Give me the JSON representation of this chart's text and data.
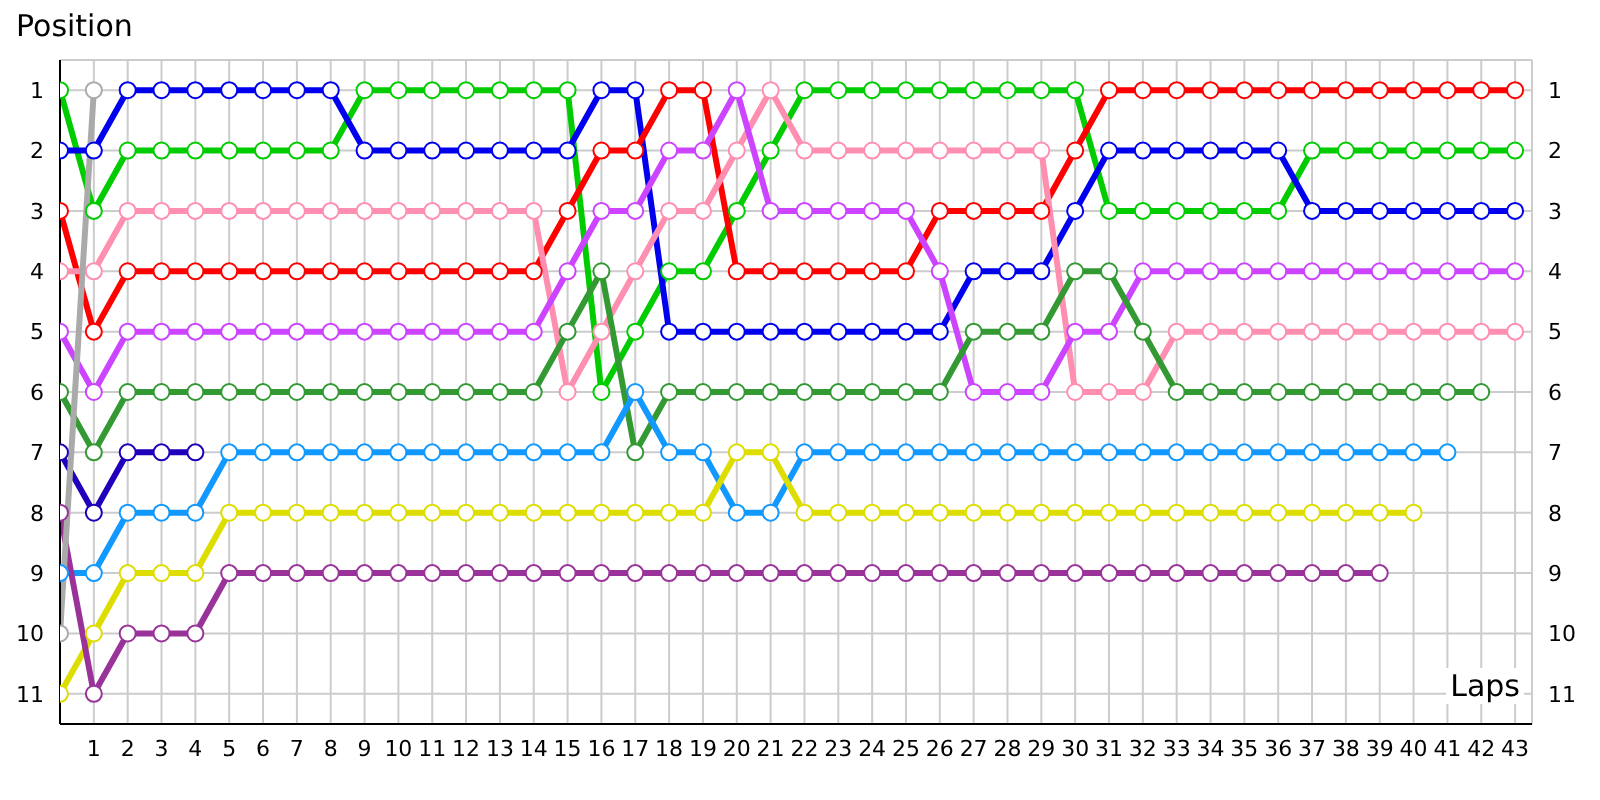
{
  "chart_data": {
    "type": "line",
    "ylabel": "Position",
    "xlabel": "Laps",
    "x": [
      0,
      1,
      2,
      3,
      4,
      5,
      6,
      7,
      8,
      9,
      10,
      11,
      12,
      13,
      14,
      15,
      16,
      17,
      18,
      19,
      20,
      21,
      22,
      23,
      24,
      25,
      26,
      27,
      28,
      29,
      30,
      31,
      32,
      33,
      34,
      35,
      36,
      37,
      38,
      39,
      40,
      41,
      42,
      43
    ],
    "xlim": [
      0,
      43.5
    ],
    "xticks": [
      1,
      2,
      3,
      4,
      5,
      6,
      7,
      8,
      9,
      10,
      11,
      12,
      13,
      14,
      15,
      16,
      17,
      18,
      19,
      20,
      21,
      22,
      23,
      24,
      25,
      26,
      27,
      28,
      29,
      30,
      31,
      32,
      33,
      34,
      35,
      36,
      37,
      38,
      39,
      40,
      41,
      42,
      43
    ],
    "ylim": [
      11.5,
      0.5
    ],
    "yticks": [
      1,
      2,
      3,
      4,
      5,
      6,
      7,
      8,
      9,
      10,
      11
    ],
    "y2lim": [
      11.5,
      0.5
    ],
    "y2ticks": [
      1,
      2,
      3,
      4,
      5,
      6,
      7,
      8,
      9,
      10,
      11
    ],
    "grid": true,
    "marker": "circle",
    "line_style": "solid",
    "series": [
      {
        "color": "#00cc00",
        "values": [
          1,
          3,
          2,
          2,
          2,
          2,
          2,
          2,
          2,
          1,
          1,
          1,
          1,
          1,
          1,
          1,
          6,
          5,
          4,
          4,
          3,
          2,
          1,
          1,
          1,
          1,
          1,
          1,
          1,
          1,
          1,
          3,
          3,
          3,
          3,
          3,
          3,
          2,
          2,
          2,
          2,
          2,
          2,
          2
        ]
      },
      {
        "color": "#0000ee",
        "values": [
          2,
          2,
          1,
          1,
          1,
          1,
          1,
          1,
          1,
          2,
          2,
          2,
          2,
          2,
          2,
          2,
          1,
          1,
          5,
          5,
          5,
          5,
          5,
          5,
          5,
          5,
          5,
          4,
          4,
          4,
          3,
          2,
          2,
          2,
          2,
          2,
          2,
          3,
          3,
          3,
          3,
          3,
          3,
          3
        ]
      },
      {
        "color": "#ff0000",
        "values": [
          3,
          5,
          4,
          4,
          4,
          4,
          4,
          4,
          4,
          4,
          4,
          4,
          4,
          4,
          4,
          3,
          2,
          2,
          1,
          1,
          4,
          4,
          4,
          4,
          4,
          4,
          3,
          3,
          3,
          3,
          2,
          1,
          1,
          1,
          1,
          1,
          1,
          1,
          1,
          1,
          1,
          1,
          1,
          1
        ]
      },
      {
        "color": "#ff8fb0",
        "values": [
          4,
          4,
          3,
          3,
          3,
          3,
          3,
          3,
          3,
          3,
          3,
          3,
          3,
          3,
          3,
          6,
          5,
          4,
          3,
          3,
          2,
          1,
          2,
          2,
          2,
          2,
          2,
          2,
          2,
          2,
          6,
          6,
          6,
          5,
          5,
          5,
          5,
          5,
          5,
          5,
          5,
          5,
          5,
          5
        ]
      },
      {
        "color": "#cc44ff",
        "values": [
          5,
          6,
          5,
          5,
          5,
          5,
          5,
          5,
          5,
          5,
          5,
          5,
          5,
          5,
          5,
          4,
          3,
          3,
          2,
          2,
          1,
          3,
          3,
          3,
          3,
          3,
          4,
          6,
          6,
          6,
          5,
          5,
          4,
          4,
          4,
          4,
          4,
          4,
          4,
          4,
          4,
          4,
          4,
          4
        ]
      },
      {
        "color": "#339933",
        "values": [
          6,
          7,
          6,
          6,
          6,
          6,
          6,
          6,
          6,
          6,
          6,
          6,
          6,
          6,
          6,
          5,
          4,
          7,
          6,
          6,
          6,
          6,
          6,
          6,
          6,
          6,
          6,
          5,
          5,
          5,
          4,
          4,
          5,
          6,
          6,
          6,
          6,
          6,
          6,
          6,
          6,
          6,
          6,
          null
        ]
      },
      {
        "color": "#2200bb",
        "values": [
          7,
          8,
          7,
          7,
          7,
          null,
          null,
          null,
          null,
          null,
          null,
          null,
          null,
          null,
          null,
          null,
          null,
          null,
          null,
          null,
          null,
          null,
          null,
          null,
          null,
          null,
          null,
          null,
          null,
          null,
          null,
          null,
          null,
          null,
          null,
          null,
          null,
          null,
          null,
          null,
          null,
          null,
          null,
          null
        ]
      },
      {
        "color": "#1199ff",
        "values": [
          9,
          9,
          8,
          8,
          8,
          7,
          7,
          7,
          7,
          7,
          7,
          7,
          7,
          7,
          7,
          7,
          7,
          6,
          7,
          7,
          8,
          8,
          7,
          7,
          7,
          7,
          7,
          7,
          7,
          7,
          7,
          7,
          7,
          7,
          7,
          7,
          7,
          7,
          7,
          7,
          7,
          7,
          null,
          null
        ]
      },
      {
        "color": "#dddd00",
        "values": [
          11,
          10,
          9,
          9,
          9,
          8,
          8,
          8,
          8,
          8,
          8,
          8,
          8,
          8,
          8,
          8,
          8,
          8,
          8,
          8,
          7,
          7,
          8,
          8,
          8,
          8,
          8,
          8,
          8,
          8,
          8,
          8,
          8,
          8,
          8,
          8,
          8,
          8,
          8,
          8,
          8,
          null,
          null,
          null
        ]
      },
      {
        "color": "#993399",
        "values": [
          8,
          11,
          10,
          10,
          10,
          9,
          9,
          9,
          9,
          9,
          9,
          9,
          9,
          9,
          9,
          9,
          9,
          9,
          9,
          9,
          9,
          9,
          9,
          9,
          9,
          9,
          9,
          9,
          9,
          9,
          9,
          9,
          9,
          9,
          9,
          9,
          9,
          9,
          9,
          9,
          null,
          null,
          null,
          null
        ]
      },
      {
        "color": "#aaaaaa",
        "values": [
          10,
          1,
          null,
          null,
          null,
          null,
          null,
          null,
          null,
          null,
          null,
          null,
          null,
          null,
          null,
          null,
          null,
          null,
          null,
          null,
          null,
          null,
          null,
          null,
          null,
          null,
          null,
          null,
          null,
          null,
          null,
          null,
          null,
          null,
          null,
          null,
          null,
          null,
          null,
          null,
          null,
          null,
          null,
          null
        ]
      }
    ]
  }
}
